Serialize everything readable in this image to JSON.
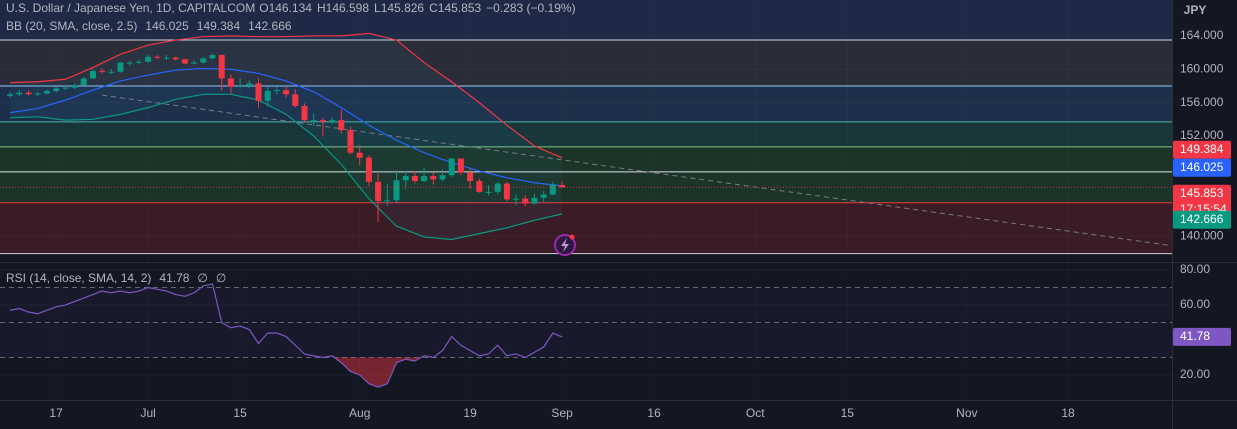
{
  "chart_data": [
    {
      "type": "candlestick",
      "title": "U.S. Dollar / Japanese Yen, 1D, CAPITALCOM",
      "ohlc_labels": [
        "O",
        "H",
        "L",
        "C"
      ],
      "change": "−0.283 (−0.19%)",
      "unit": "JPY",
      "countdown": "17:15:54",
      "up_color": "#089981",
      "down_color": "#f23645",
      "x": [
        0,
        1,
        2,
        3,
        4,
        5,
        6,
        7,
        8,
        9,
        10,
        11,
        12,
        13,
        14,
        15,
        16,
        17,
        18,
        19,
        20,
        21,
        22,
        23,
        24,
        25,
        26,
        27,
        28,
        29,
        30,
        31,
        32,
        33,
        34,
        35,
        36,
        37,
        38,
        39,
        40,
        41,
        42,
        43,
        44,
        45,
        46,
        47,
        48,
        49,
        50,
        51,
        52,
        53,
        54,
        55,
        56,
        57,
        58,
        59,
        60
      ],
      "open": [
        156.8,
        157.0,
        157.2,
        157.0,
        157.1,
        157.4,
        157.7,
        157.8,
        158.1,
        158.9,
        159.8,
        159.7,
        159.7,
        160.8,
        160.8,
        160.9,
        161.5,
        161.4,
        161.4,
        161.2,
        160.7,
        160.8,
        161.3,
        161.7,
        158.9,
        157.9,
        158.0,
        158.3,
        156.2,
        157.4,
        157.5,
        157.0,
        155.6,
        153.9,
        153.9,
        153.7,
        153.9,
        152.7,
        150.0,
        149.4,
        146.5,
        144.2,
        144.3,
        146.7,
        147.2,
        146.6,
        147.2,
        146.8,
        147.3,
        149.3,
        147.6,
        146.6,
        145.3,
        145.3,
        146.3,
        144.4,
        144.5,
        143.9,
        144.6,
        145.0,
        146.134
      ],
      "high": [
        157.3,
        157.5,
        157.5,
        157.3,
        157.6,
        157.9,
        158.0,
        158.3,
        159.1,
        160.0,
        160.1,
        160.0,
        160.9,
        161.0,
        161.2,
        161.7,
        161.7,
        161.7,
        161.5,
        161.2,
        161.1,
        161.5,
        161.9,
        161.8,
        159.4,
        158.9,
        158.7,
        158.9,
        157.9,
        157.9,
        157.9,
        157.6,
        155.9,
        154.7,
        154.2,
        154.3,
        155.2,
        153.1,
        150.9,
        149.7,
        147.5,
        146.3,
        147.9,
        147.8,
        147.8,
        148.2,
        147.6,
        148.0,
        149.4,
        149.3,
        148.1,
        146.9,
        146.1,
        146.5,
        146.5,
        145.0,
        144.9,
        145.1,
        145.4,
        146.5,
        146.598
      ],
      "low": [
        156.6,
        156.8,
        156.9,
        156.8,
        157.0,
        157.2,
        157.5,
        157.6,
        158.0,
        158.8,
        159.5,
        159.4,
        159.6,
        160.4,
        160.6,
        160.8,
        161.2,
        161.1,
        161.0,
        160.6,
        160.6,
        160.7,
        161.2,
        157.4,
        157.1,
        157.8,
        157.7,
        155.4,
        155.5,
        157.0,
        156.6,
        155.4,
        153.6,
        153.2,
        152.0,
        153.4,
        152.3,
        149.8,
        148.5,
        146.0,
        141.7,
        143.6,
        144.0,
        145.6,
        146.3,
        146.5,
        146.2,
        146.6,
        147.1,
        147.3,
        145.7,
        145.2,
        144.9,
        145.0,
        144.2,
        143.7,
        143.6,
        143.8,
        144.1,
        144.9,
        145.826
      ],
      "close": [
        157.0,
        157.2,
        157.0,
        157.1,
        157.4,
        157.7,
        157.8,
        158.1,
        158.9,
        159.8,
        159.7,
        159.7,
        160.8,
        160.8,
        160.9,
        161.5,
        161.4,
        161.4,
        161.2,
        160.7,
        160.8,
        161.3,
        161.7,
        158.9,
        157.9,
        158.0,
        158.3,
        156.2,
        157.4,
        157.5,
        157.0,
        155.6,
        153.9,
        153.9,
        153.7,
        153.9,
        152.7,
        150.0,
        149.4,
        146.5,
        144.2,
        144.3,
        146.7,
        147.2,
        146.6,
        147.2,
        146.8,
        147.3,
        149.3,
        147.6,
        146.6,
        145.3,
        145.3,
        146.3,
        144.4,
        144.5,
        143.9,
        144.6,
        145.0,
        146.2,
        145.853
      ],
      "overlay_title": "BB (20, SMA, close, 2.5)",
      "overlays": [
        {
          "color": "#2962ff",
          "x": [
            0,
            3,
            6,
            9,
            12,
            15,
            18,
            21,
            24,
            27,
            30,
            33,
            36,
            39,
            42,
            45,
            48,
            51,
            54,
            57,
            60
          ],
          "values": [
            154.8,
            155.3,
            156.3,
            157.5,
            158.6,
            159.3,
            159.9,
            160.1,
            160.0,
            159.5,
            158.6,
            157.3,
            155.4,
            153.3,
            151.5,
            150.0,
            148.8,
            147.8,
            147.0,
            146.4,
            146.025
          ]
        },
        {
          "color": "#f23645",
          "x": [
            0,
            3,
            6,
            9,
            12,
            15,
            18,
            21,
            24,
            27,
            30,
            33,
            36,
            39,
            42,
            45,
            48,
            51,
            54,
            57,
            60
          ],
          "values": [
            158.4,
            158.5,
            158.8,
            160.2,
            161.8,
            162.9,
            163.5,
            163.9,
            164.0,
            163.9,
            163.9,
            164.0,
            164.0,
            164.3,
            163.5,
            160.8,
            158.5,
            156.0,
            153.3,
            150.8,
            149.384
          ]
        },
        {
          "color": "#089981",
          "x": [
            0,
            3,
            6,
            9,
            12,
            15,
            18,
            21,
            24,
            27,
            30,
            33,
            36,
            39,
            42,
            45,
            48,
            51,
            54,
            57,
            60
          ],
          "values": [
            154.2,
            154.3,
            153.9,
            154.0,
            154.6,
            155.4,
            156.4,
            157.0,
            157.0,
            156.3,
            154.6,
            152.0,
            148.6,
            144.5,
            141.2,
            139.9,
            139.6,
            140.3,
            141.0,
            141.9,
            142.666
          ]
        }
      ],
      "levels": [
        163.5,
        158.0,
        153.7,
        150.7,
        147.7,
        144.0,
        137.9
      ],
      "level_colors": [
        "#d1d4dc",
        "#90caf9",
        "#4db6ac",
        "#81c784",
        "#e0e3eb",
        "#f23645",
        "#d1d4dc"
      ],
      "level_fills": [
        "#1e2946",
        "#2a2d37",
        "#1e3049",
        "#18363a",
        "#1c3327",
        "#1c3327",
        "#3a1c26"
      ],
      "trendline": {
        "color": "#787b86",
        "x": [
          10,
          126
        ],
        "values": [
          156.9,
          138.9
        ]
      },
      "xlim": [
        -1.1,
        126.3
      ],
      "ylim": [
        136.9,
        168.3
      ],
      "xticks": [
        {
          "value": 5,
          "label": "17"
        },
        {
          "value": 15,
          "label": "Jul"
        },
        {
          "value": 25,
          "label": "15"
        },
        {
          "value": 38,
          "label": "Aug"
        },
        {
          "value": 50,
          "label": "19"
        },
        {
          "value": 60,
          "label": "Sep"
        },
        {
          "value": 70,
          "label": "16"
        },
        {
          "value": 81,
          "label": "Oct"
        },
        {
          "value": 91,
          "label": "15"
        },
        {
          "value": 104,
          "label": "Nov"
        },
        {
          "value": 115,
          "label": "18"
        }
      ],
      "yticks": [
        {
          "value": 164,
          "label": "164.000"
        },
        {
          "value": 160,
          "label": "160.000"
        },
        {
          "value": 156,
          "label": "156.000"
        },
        {
          "value": 152,
          "label": "152.000"
        },
        {
          "value": 140,
          "label": "140.000"
        }
      ]
    },
    {
      "type": "line",
      "title": "RSI (14, close, SMA, 14, 2)",
      "legend_extra": [
        "∅",
        "∅"
      ],
      "color": "#7e57c2",
      "oversold_color": "#f23645",
      "x": [
        0,
        1,
        2,
        3,
        4,
        5,
        6,
        7,
        8,
        9,
        10,
        11,
        12,
        13,
        14,
        15,
        16,
        17,
        18,
        19,
        20,
        21,
        22,
        23,
        24,
        25,
        26,
        27,
        28,
        29,
        30,
        31,
        32,
        33,
        34,
        35,
        36,
        37,
        38,
        39,
        40,
        41,
        42,
        43,
        44,
        45,
        46,
        47,
        48,
        49,
        50,
        51,
        52,
        53,
        54,
        55,
        56,
        57,
        58,
        59,
        60
      ],
      "values": [
        57,
        58,
        56,
        55,
        57,
        59,
        60,
        62,
        64,
        66,
        68,
        67,
        68,
        67,
        68,
        70,
        69,
        68,
        66,
        65,
        67,
        71,
        72,
        50,
        47,
        48,
        46,
        38,
        44,
        44,
        42,
        37,
        32,
        31,
        30,
        31,
        27,
        22,
        20,
        15,
        13,
        15,
        27,
        29,
        28,
        31,
        30,
        34,
        42,
        37,
        34,
        31,
        32,
        37,
        31,
        32,
        30,
        33,
        36,
        44,
        41.78
      ],
      "levels": [
        70,
        50,
        30
      ],
      "ylim": [
        5.7,
        84.6
      ],
      "yticks": [
        {
          "value": 80,
          "label": "80.00"
        },
        {
          "value": 60,
          "label": "60.00"
        },
        {
          "value": 20,
          "label": "20.00"
        }
      ]
    }
  ]
}
